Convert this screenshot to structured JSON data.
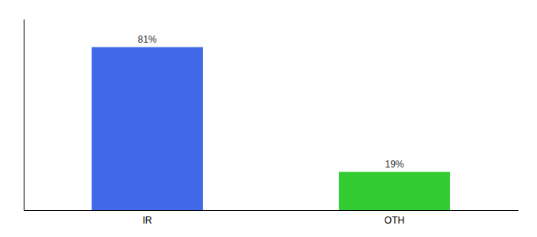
{
  "chart_data": {
    "type": "bar",
    "categories": [
      "IR",
      "OTH"
    ],
    "values": [
      81,
      19
    ],
    "value_labels": [
      "81%",
      "19%"
    ],
    "colors": [
      "#4169e8",
      "#33cc33"
    ],
    "ylim": [
      0,
      95
    ],
    "data_labels": true,
    "tick_labels": "x"
  }
}
